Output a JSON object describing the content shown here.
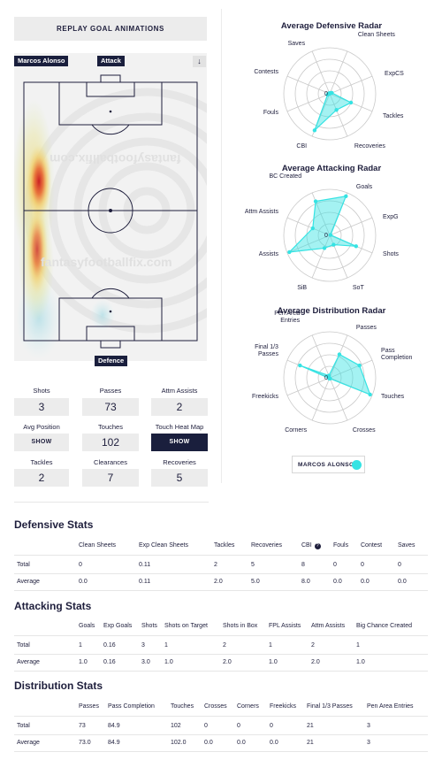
{
  "replay_button": "REPLAY GOAL ANIMATIONS",
  "pitch": {
    "player_tag": "Marcos Alonso",
    "attack_label": "Attack",
    "defence_label": "Defence",
    "download_icon": "↓",
    "watermark": "fantasyfootballfix.com"
  },
  "summary": {
    "shots": {
      "label": "Shots",
      "value": "3"
    },
    "passes": {
      "label": "Passes",
      "value": "73"
    },
    "attm_assists": {
      "label": "Attm Assists",
      "value": "2"
    },
    "avg_position": {
      "label": "Avg Position",
      "button": "SHOW"
    },
    "touches": {
      "label": "Touches",
      "value": "102"
    },
    "touch_heat_map": {
      "label": "Touch Heat Map",
      "button": "SHOW"
    },
    "tackles": {
      "label": "Tackles",
      "value": "2"
    },
    "clearances": {
      "label": "Clearances",
      "value": "7"
    },
    "recoveries": {
      "label": "Recoveries",
      "value": "5"
    }
  },
  "radars": {
    "defensive": {
      "title": "Average Defensive Radar",
      "labels": [
        "Saves",
        "Clean Sheets",
        "ExpCS",
        "Tackles",
        "Recoveries",
        "CBI",
        "Fouls",
        "Contests"
      ],
      "values": [
        0.0,
        0.02,
        0.05,
        0.5,
        0.38,
        0.86,
        0.05,
        0.02
      ]
    },
    "attacking": {
      "title": "Average Attacking Radar",
      "labels": [
        "Goals",
        "ExpG",
        "Shots",
        "SoT",
        "SiB",
        "Assists",
        "Attm Assists",
        "BC Created"
      ],
      "values": [
        0.92,
        0.02,
        0.62,
        0.22,
        0.3,
        0.95,
        0.4,
        0.8
      ]
    },
    "distribution": {
      "title": "Average Distribution Radar",
      "labels": [
        "Passes",
        "Pass Completion",
        "Touches",
        "Crosses",
        "Corners",
        "Freekicks",
        "Final 1/3 Passes",
        "Pen Area Entries"
      ],
      "values": [
        0.55,
        0.7,
        0.95,
        0.02,
        0.02,
        0.02,
        0.7,
        0.05
      ]
    },
    "zero_label": "0",
    "color": "#35e3e3"
  },
  "legend": {
    "player": "MARCOS ALONSO"
  },
  "defensive_stats": {
    "title": "Defensive Stats",
    "headers": [
      "Clean Sheets",
      "Exp Clean Sheets",
      "Tackles",
      "Recoveries",
      "CBI",
      "Fouls",
      "Contest",
      "Saves"
    ],
    "rows": [
      {
        "label": "Total",
        "values": [
          "0",
          "0.11",
          "2",
          "5",
          "8",
          "0",
          "0",
          "0"
        ]
      },
      {
        "label": "Average",
        "values": [
          "0.0",
          "0.11",
          "2.0",
          "5.0",
          "8.0",
          "0.0",
          "0.0",
          "0.0"
        ]
      }
    ]
  },
  "attacking_stats": {
    "title": "Attacking Stats",
    "headers": [
      "Goals",
      "Exp Goals",
      "Shots",
      "Shots on Target",
      "Shots in Box",
      "FPL Assists",
      "Attm Assists",
      "Big Chance Created"
    ],
    "rows": [
      {
        "label": "Total",
        "values": [
          "1",
          "0.16",
          "3",
          "1",
          "2",
          "1",
          "2",
          "1"
        ]
      },
      {
        "label": "Average",
        "values": [
          "1.0",
          "0.16",
          "3.0",
          "1.0",
          "2.0",
          "1.0",
          "2.0",
          "1.0"
        ]
      }
    ]
  },
  "distribution_stats": {
    "title": "Distribution Stats",
    "headers": [
      "Passes",
      "Pass Completion",
      "Touches",
      "Crosses",
      "Corners",
      "Freekicks",
      "Final 1/3 Passes",
      "Pen Area Entries"
    ],
    "rows": [
      {
        "label": "Total",
        "values": [
          "73",
          "84.9",
          "102",
          "0",
          "0",
          "0",
          "21",
          "3"
        ]
      },
      {
        "label": "Average",
        "values": [
          "73.0",
          "84.9",
          "102.0",
          "0.0",
          "0.0",
          "0.0",
          "21",
          "3"
        ]
      }
    ]
  }
}
